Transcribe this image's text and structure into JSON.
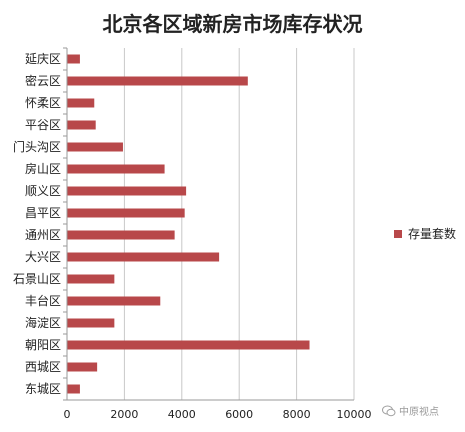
{
  "colors": {
    "bar": "#b8484a",
    "grid": "#c8c8c8",
    "axis": "#9a9a9a",
    "text": "#222222"
  },
  "watermark": {
    "icon": "wechat-bubble-icon",
    "text": "中原视点"
  },
  "chart_data": {
    "type": "bar",
    "orientation": "horizontal",
    "title": "北京各区域新房市场库存状况",
    "categories": [
      "延庆区",
      "密云区",
      "怀柔区",
      "平谷区",
      "门头沟区",
      "房山区",
      "顺义区",
      "昌平区",
      "通州区",
      "大兴区",
      "石景山区",
      "丰台区",
      "海淀区",
      "朝阳区",
      "西城区",
      "东城区"
    ],
    "series": [
      {
        "name": "存量套数",
        "values": [
          450,
          6300,
          950,
          1000,
          1950,
          3400,
          4150,
          4100,
          3750,
          5300,
          1650,
          3250,
          1650,
          8450,
          1050,
          450
        ]
      }
    ],
    "xlim": [
      0,
      10000
    ],
    "xticks": [
      0,
      2000,
      4000,
      6000,
      8000,
      10000
    ],
    "grid": "vertical",
    "legend_position": "right"
  }
}
